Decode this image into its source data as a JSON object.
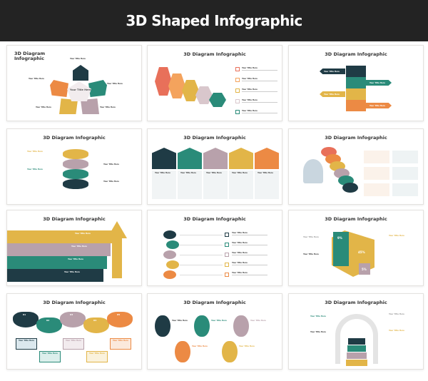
{
  "header": {
    "title": "3D Shaped Infographic"
  },
  "slides": [
    {
      "title": "3D Diagram Infographic",
      "center_label": "Your Title Here"
    },
    {
      "title": "3D Diagram Infographic",
      "numbers": [
        "01",
        "02",
        "03",
        "04",
        "05"
      ]
    },
    {
      "title": "3D Diagram Infographic"
    },
    {
      "title": "3D Diagram Infographic"
    },
    {
      "title": "3D Diagram Infographic"
    },
    {
      "title": "3D Diagram Infographic"
    },
    {
      "title": "3D Diagram Infographic"
    },
    {
      "title": "3D Diagram Infographic"
    },
    {
      "title": "3D Diagram Infographic",
      "values": [
        "9%",
        "45%",
        "5%"
      ]
    },
    {
      "title": "3D Diagram Infographic",
      "numbers": [
        "01",
        "02",
        "03",
        "04",
        "05"
      ]
    },
    {
      "title": "3D Diagram Infographic"
    },
    {
      "title": "3D Diagram Infographic"
    }
  ],
  "item_label": "Your Title Here",
  "colors": {
    "dark": "#1f3b45",
    "teal": "#2a8b79",
    "mauve": "#b8a1ab",
    "gold": "#e2b548",
    "orange": "#ec8a44",
    "salmon": "#e8705a",
    "header_bg": "#232323"
  }
}
